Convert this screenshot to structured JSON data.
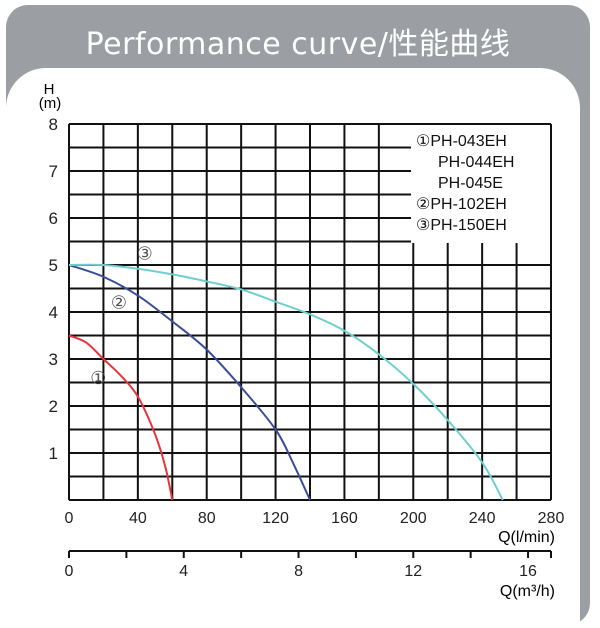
{
  "chart_data": {
    "type": "line",
    "title": "Performance curve/性能曲线",
    "ylabel_top": "H",
    "ylabel_unit": "(m)",
    "xlabel": "Q(l/min)",
    "x2label": "Q(m³/h)",
    "xlim": [
      0,
      280
    ],
    "ylim": [
      0,
      8
    ],
    "x2lim": [
      0,
      16.8
    ],
    "xticks": [
      0,
      40,
      80,
      120,
      160,
      200,
      240,
      280
    ],
    "yticks": [
      1,
      2,
      3,
      4,
      5,
      6,
      7,
      8
    ],
    "x2ticks_labeled": [
      0,
      4,
      8,
      12,
      16
    ],
    "grid": true,
    "legend_placement": "top-right",
    "legend": [
      "①PH-043EH",
      "PH-044EH",
      "PH-045E",
      "②PH-102EH",
      "③PH-150EH"
    ],
    "series": [
      {
        "marker": "①",
        "color": "#e8343c",
        "x": [
          0,
          10,
          20,
          30,
          40,
          50,
          56,
          60
        ],
        "y": [
          3.5,
          3.35,
          3.0,
          2.65,
          2.2,
          1.4,
          0.7,
          0
        ]
      },
      {
        "marker": "②",
        "color": "#3b4c98",
        "x": [
          0,
          20,
          40,
          60,
          80,
          100,
          120,
          130,
          140
        ],
        "y": [
          5.0,
          4.75,
          4.35,
          3.8,
          3.2,
          2.4,
          1.5,
          0.8,
          0
        ]
      },
      {
        "marker": "③",
        "color": "#6fcfcf",
        "x": [
          0,
          20,
          40,
          60,
          80,
          100,
          120,
          140,
          160,
          180,
          200,
          220,
          240,
          252
        ],
        "y": [
          5.0,
          5.0,
          4.92,
          4.8,
          4.65,
          4.48,
          4.22,
          3.95,
          3.6,
          3.1,
          2.47,
          1.7,
          0.8,
          0
        ]
      }
    ],
    "annotations": [
      {
        "text": "③",
        "x": 44,
        "y": 5.25
      },
      {
        "text": "②",
        "x": 29,
        "y": 4.2
      },
      {
        "text": "①",
        "x": 17,
        "y": 2.6
      }
    ]
  }
}
